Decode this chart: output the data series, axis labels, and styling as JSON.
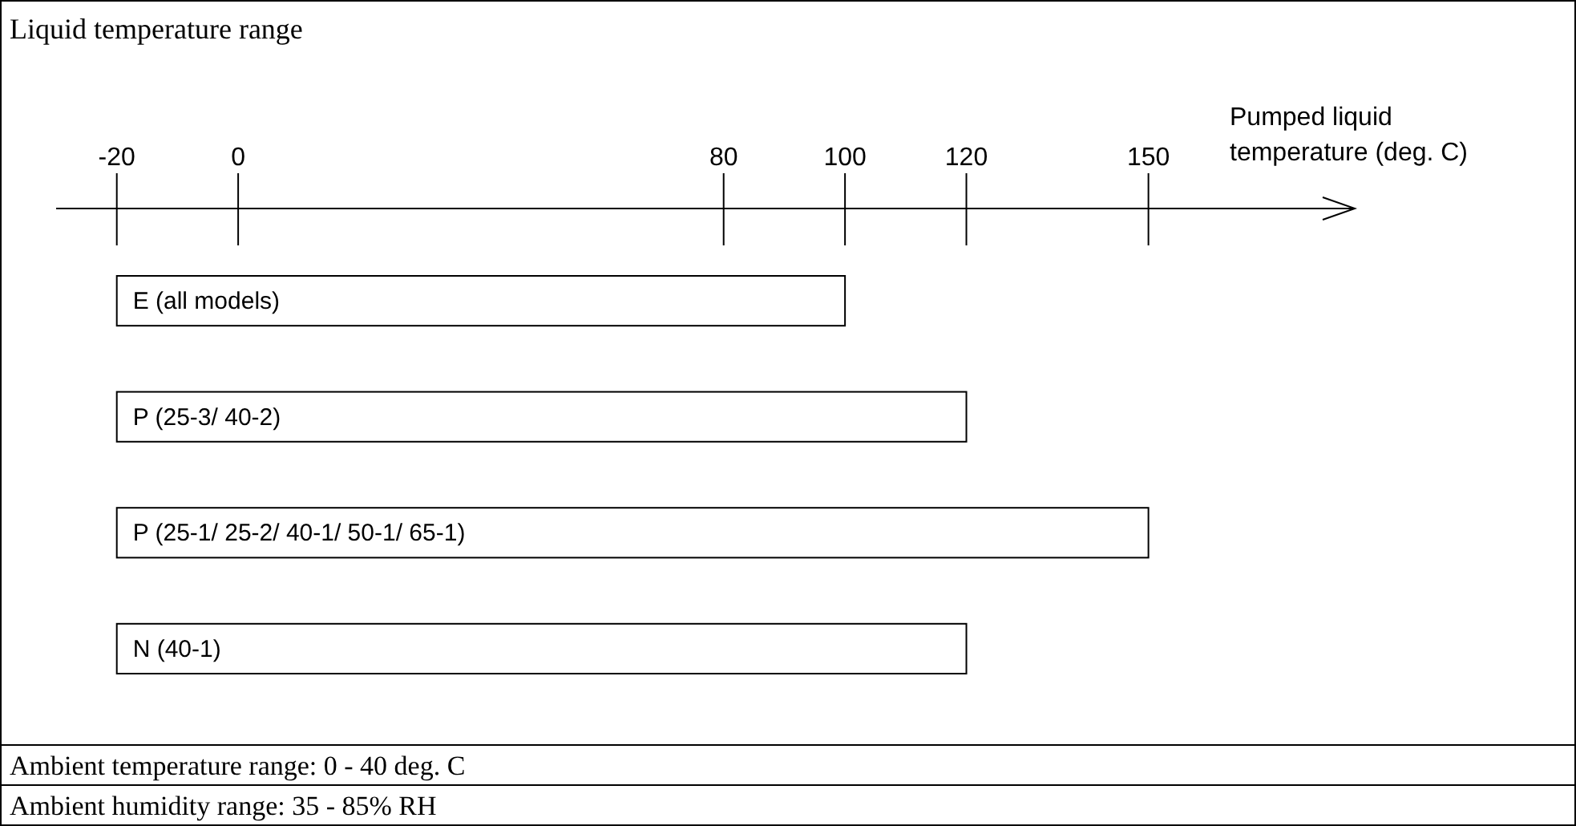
{
  "chart_data": {
    "type": "bar",
    "orientation": "horizontal",
    "title": "Liquid temperature range",
    "xlabel": "Pumped liquid temperature (deg. C)",
    "categories": [
      "E (all models)",
      "P (25-3/ 40-2)",
      "P (25-1/ 25-2/ 40-1/ 50-1/ 65-1)",
      "N (40-1)"
    ],
    "base": [
      -20,
      -20,
      -20,
      -20
    ],
    "values": [
      120,
      140,
      170,
      140
    ],
    "color": "#ffffff",
    "xlim": [
      -30,
      184
    ],
    "xticks": [
      -20,
      0,
      80,
      100,
      120,
      150
    ],
    "grid": false,
    "annotations": [
      "Ambient temperature range: 0 - 40 deg. C",
      "Ambient humidity range: 35 - 85% RH"
    ]
  }
}
